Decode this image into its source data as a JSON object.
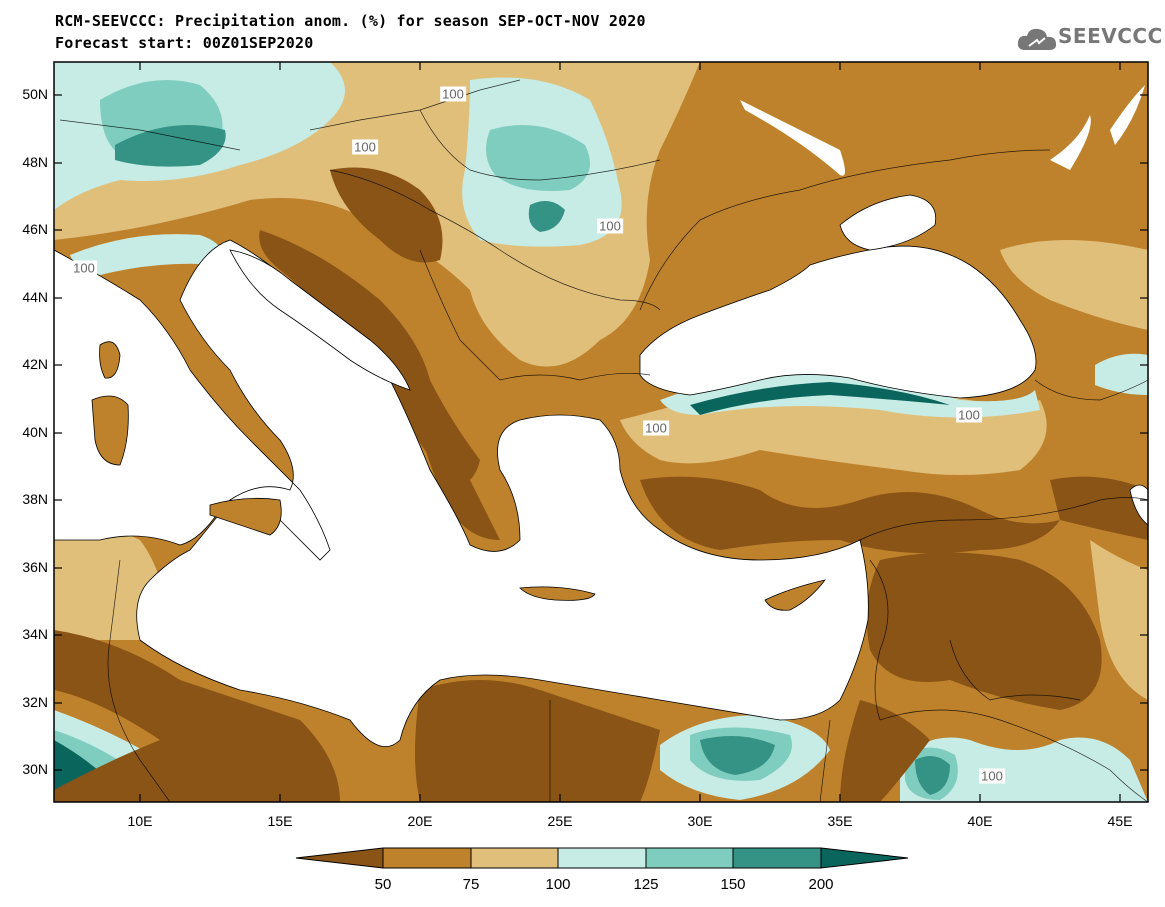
{
  "title": {
    "line1": "RCM-SEEVCCC: Precipitation anom. (%) for season SEP-OCT-NOV 2020",
    "line2": "Forecast start: 00Z01SEP2020"
  },
  "logo": {
    "text": "SEEVCCC",
    "icon": "cloud-icon"
  },
  "map": {
    "lat_labels": [
      "50N",
      "48N",
      "46N",
      "44N",
      "42N",
      "40N",
      "38N",
      "36N",
      "34N",
      "32N",
      "30N"
    ],
    "lon_labels": [
      "10E",
      "15E",
      "20E",
      "25E",
      "30E",
      "35E",
      "40E",
      "45E"
    ],
    "contour_labels": [
      "100",
      "100",
      "100",
      "100",
      "100",
      "100",
      "100"
    ],
    "palette": {
      "below_50": "#8a5416",
      "50_75": "#bf822c",
      "75_100": "#e0bf7b",
      "100_125": "#c7ece6",
      "125_150": "#7fcdbf",
      "150_200": "#359386",
      "above_200": "#0a665c",
      "sea": "#ffffff"
    }
  },
  "colorbar": {
    "ticks": [
      "50",
      "75",
      "100",
      "125",
      "150",
      "200"
    ],
    "colors": [
      "#8a5416",
      "#bf822c",
      "#e0bf7b",
      "#c7ece6",
      "#7fcdbf",
      "#359386",
      "#0a665c"
    ]
  }
}
